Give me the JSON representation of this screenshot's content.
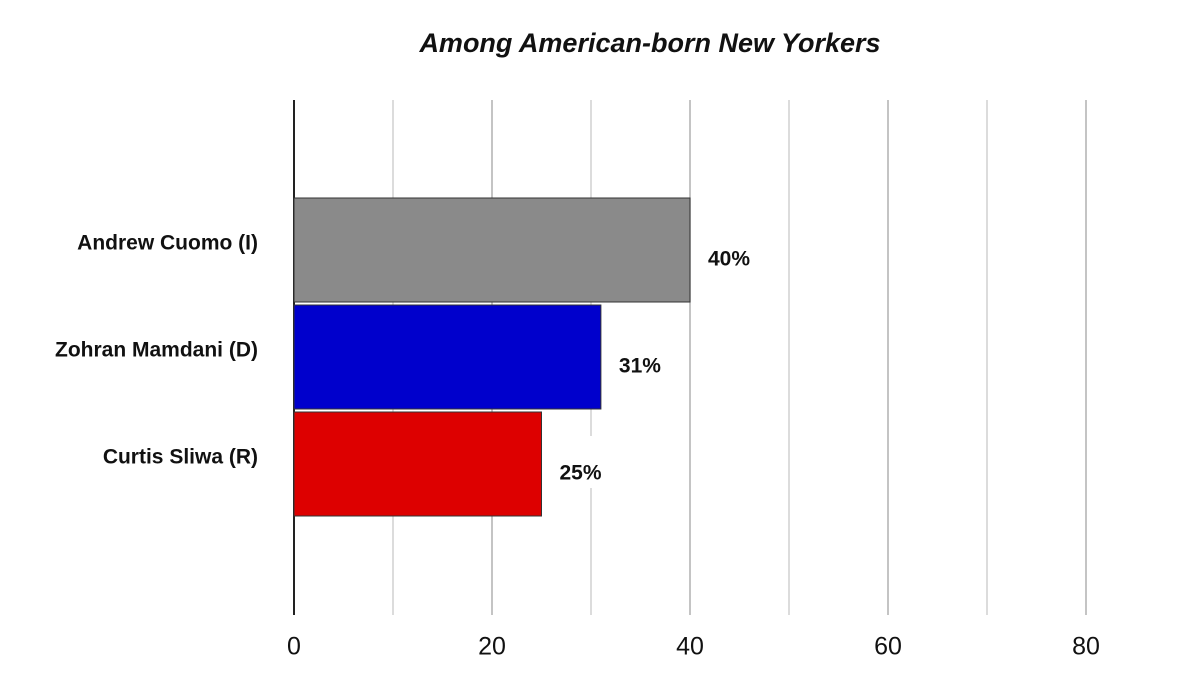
{
  "chart_data": {
    "type": "bar",
    "orientation": "horizontal",
    "title": "Among American-born New Yorkers",
    "categories": [
      "Andrew Cuomo (I)",
      "Zohran Mamdani (D)",
      "Curtis Sliwa (R)"
    ],
    "values": [
      40,
      31,
      25
    ],
    "value_labels": [
      "40%",
      "31%",
      "25%"
    ],
    "colors": [
      "#8a8a8a",
      "#0000cc",
      "#dd0000"
    ],
    "xlim": [
      0,
      90
    ],
    "xticks": [
      0,
      20,
      40,
      60,
      80
    ],
    "minor_xticks": [
      10,
      30,
      50,
      70
    ],
    "grid": true
  }
}
